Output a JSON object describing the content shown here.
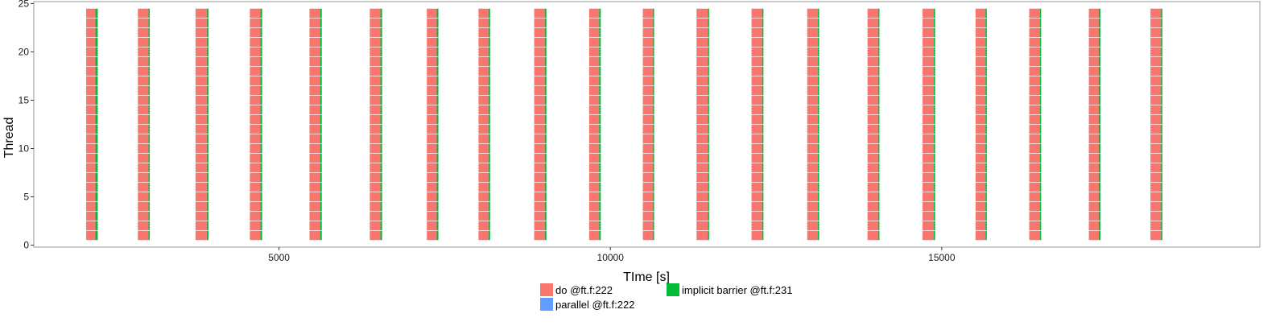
{
  "chart_data": {
    "type": "gantt",
    "xlabel": "TIme [s]",
    "ylabel": "Thread",
    "x_ticks": [
      5000,
      10000,
      15000
    ],
    "y_ticks": [
      0,
      5,
      10,
      15,
      20,
      25
    ],
    "xlim": [
      1300,
      19800
    ],
    "ylim": [
      -0.2,
      25.2
    ],
    "threads": [
      1,
      24
    ],
    "grid": false,
    "legend": {
      "position": "bottom",
      "entries": [
        {
          "label": "do @ft.f:222",
          "color": "#F8766D"
        },
        {
          "label": "implicit barrier @ft.f:231",
          "color": "#00BA38"
        },
        {
          "label": "parallel @ft.f:222",
          "color": "#619CFF"
        }
      ]
    },
    "series": [
      {
        "name": "do @ft.f:222",
        "color": "#F8766D"
      },
      {
        "name": "implicit barrier @ft.f:231",
        "color": "#00BA38"
      },
      {
        "name": "parallel @ft.f:222",
        "color": "#619CFF"
      }
    ],
    "iterations": [
      {
        "start": 2090,
        "do_end": 2230,
        "barrier_end": 2265
      },
      {
        "start": 2870,
        "do_end": 3030,
        "barrier_end": 3050
      },
      {
        "start": 3740,
        "do_end": 3910,
        "barrier_end": 3935
      },
      {
        "start": 4560,
        "do_end": 4720,
        "barrier_end": 4745
      },
      {
        "start": 5460,
        "do_end": 5620,
        "barrier_end": 5645
      },
      {
        "start": 6370,
        "do_end": 6530,
        "barrier_end": 6555
      },
      {
        "start": 7230,
        "do_end": 7380,
        "barrier_end": 7405
      },
      {
        "start": 8010,
        "do_end": 8160,
        "barrier_end": 8185
      },
      {
        "start": 8850,
        "do_end": 9010,
        "barrier_end": 9035
      },
      {
        "start": 9680,
        "do_end": 9830,
        "barrier_end": 9855
      },
      {
        "start": 10490,
        "do_end": 10640,
        "barrier_end": 10660
      },
      {
        "start": 11300,
        "do_end": 11470,
        "barrier_end": 11490
      },
      {
        "start": 12130,
        "do_end": 12290,
        "barrier_end": 12310
      },
      {
        "start": 12970,
        "do_end": 13130,
        "barrier_end": 13150
      },
      {
        "start": 13880,
        "do_end": 14040,
        "barrier_end": 14060
      },
      {
        "start": 14710,
        "do_end": 14880,
        "barrier_end": 14900
      },
      {
        "start": 15510,
        "do_end": 15660,
        "barrier_end": 15680
      },
      {
        "start": 16320,
        "do_end": 16480,
        "barrier_end": 16500
      },
      {
        "start": 17220,
        "do_end": 17370,
        "barrier_end": 17395
      },
      {
        "start": 18150,
        "do_end": 18310,
        "barrier_end": 18330
      }
    ]
  }
}
